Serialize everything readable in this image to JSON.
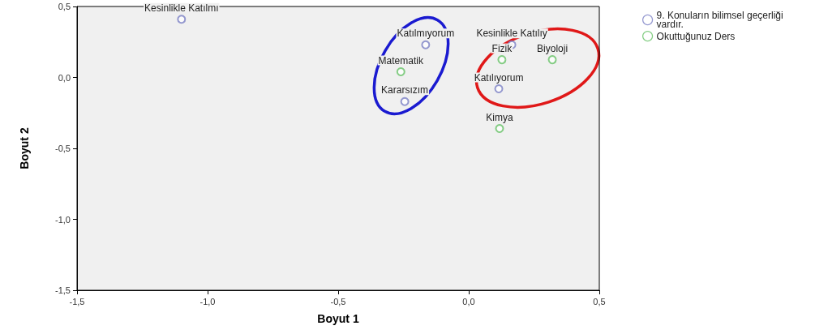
{
  "chart_data": {
    "type": "scatter",
    "xlabel": "Boyut 1",
    "ylabel": "Boyut 2",
    "xlim": [
      -1.5,
      0.5
    ],
    "ylim": [
      -1.5,
      0.5
    ],
    "xticks": [
      {
        "value": -1.5,
        "label": "-1,5"
      },
      {
        "value": -1.0,
        "label": "-1,0"
      },
      {
        "value": -0.5,
        "label": "-0,5"
      },
      {
        "value": 0,
        "label": "0,0"
      },
      {
        "value": 0.5,
        "label": "0,5"
      }
    ],
    "yticks": [
      {
        "value": -1.5,
        "label": "-1,5"
      },
      {
        "value": -1.0,
        "label": "-1,0"
      },
      {
        "value": -0.5,
        "label": "-0,5"
      },
      {
        "value": 0,
        "label": "0,0"
      },
      {
        "value": 0.5,
        "label": "0,5"
      }
    ],
    "series": [
      {
        "name": "9. Konuların bilimsel geçerliği vardır.",
        "color": "#7b80c4",
        "x": [
          -1.1,
          -0.165,
          0.165,
          0.115,
          -0.245
        ],
        "values": [
          0.41,
          0.23,
          0.23,
          -0.08,
          -0.17
        ]
      },
      {
        "name": "Okuttuğunuz Ders",
        "color": "#66c266",
        "x": [
          -0.26,
          0.127,
          0.32,
          0.118
        ],
        "values": [
          0.04,
          0.125,
          0.125,
          -0.36
        ]
      }
    ],
    "annotations": [
      {
        "text": "Kesinlikle Katılmı",
        "x": -1.1,
        "y": 0.41
      },
      {
        "text": "Katılmıyorum",
        "x": -0.165,
        "y": 0.23
      },
      {
        "text": "Kesinlikle Katılıy",
        "x": 0.165,
        "y": 0.23
      },
      {
        "text": "Katılıyorum",
        "x": 0.115,
        "y": -0.08
      },
      {
        "text": "Kararsızım",
        "x": -0.245,
        "y": -0.17
      },
      {
        "text": "Matematik",
        "x": -0.26,
        "y": 0.04
      },
      {
        "text": "Fizik",
        "x": 0.127,
        "y": 0.125
      },
      {
        "text": "Biyoloji",
        "x": 0.32,
        "y": 0.125
      },
      {
        "text": "Kimya",
        "x": 0.118,
        "y": -0.36
      }
    ],
    "grid": false,
    "legend": "top right",
    "marker": "circle"
  }
}
